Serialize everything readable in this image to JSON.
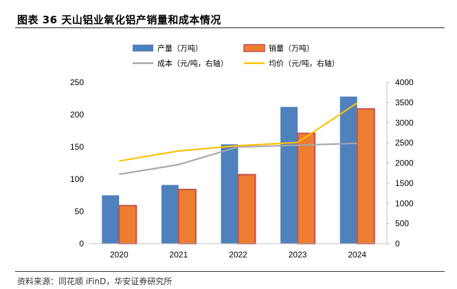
{
  "header": {
    "title": "图表 36 天山铝业氧化铝产销量和成本情况"
  },
  "footer": {
    "source": "资料来源：同花顺 iFinD，华安证券研究所"
  },
  "chart_data": {
    "type": "bar",
    "categories": [
      "2020",
      "2021",
      "2022",
      "2023",
      "2024"
    ],
    "series": [
      {
        "name": "产量（万吨）",
        "kind": "bar",
        "axis": "left",
        "color": "#4f81bd",
        "values": [
          75,
          91,
          154,
          212,
          228
        ]
      },
      {
        "name": "销量（万吨）",
        "kind": "bar",
        "axis": "left",
        "color": "#ed7d31",
        "values": [
          59,
          84,
          107,
          171,
          209
        ]
      },
      {
        "name": "成本（元/吨，右轴）",
        "kind": "line",
        "axis": "right",
        "color": "#a6a6a6",
        "values": [
          1720,
          1960,
          2400,
          2440,
          2490
        ]
      },
      {
        "name": "均价（元/吨，右轴）",
        "kind": "line",
        "axis": "right",
        "color": "#ffc000",
        "values": [
          2050,
          2300,
          2430,
          2510,
          3490
        ]
      }
    ],
    "y_left": {
      "min": 0,
      "max": 250,
      "ticks": [
        "0",
        "50",
        "100",
        "150",
        "200",
        "250"
      ]
    },
    "y_right": {
      "min": 0,
      "max": 4000,
      "ticks": [
        "0",
        "500",
        "1000",
        "1500",
        "2000",
        "2500",
        "3000",
        "3500",
        "4000"
      ]
    },
    "legend_position": "top",
    "grid": false
  }
}
